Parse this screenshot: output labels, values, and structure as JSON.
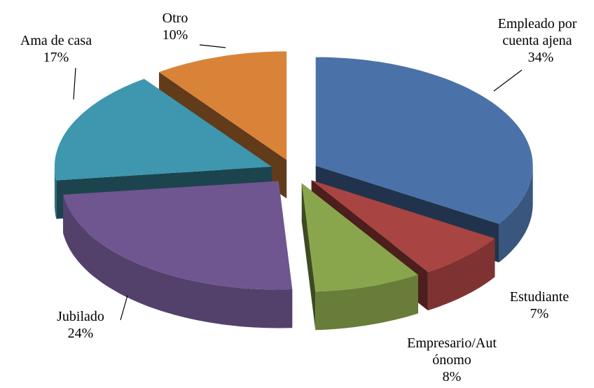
{
  "chart_data": {
    "type": "pie3d",
    "categories": [
      "Empleado por cuenta ajena",
      "Estudiante",
      "Empresario/Autónomo",
      "Jubilado",
      "Ama de casa",
      "Otro"
    ],
    "values": [
      34,
      7,
      8,
      24,
      17,
      10
    ],
    "value_labels": [
      "34%",
      "7%",
      "8%",
      "24%",
      "17%",
      "10%"
    ],
    "colors": [
      "#4a72a8",
      "#a84442",
      "#8aa64c",
      "#6f5690",
      "#3e97ae",
      "#d98339"
    ]
  }
}
